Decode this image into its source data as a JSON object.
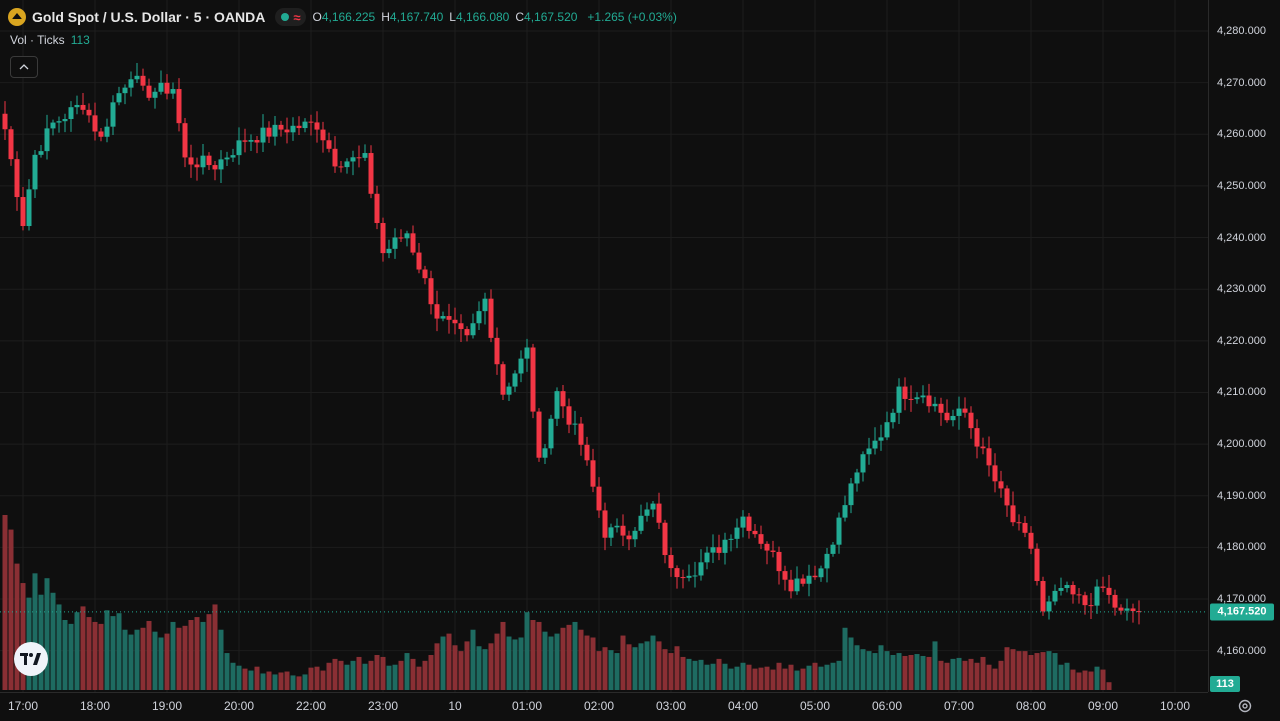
{
  "header": {
    "symbol": "Gold Spot / U.S. Dollar · 5 · OANDA",
    "delay_glyph": "≈",
    "ohlc": {
      "o_label": "O",
      "o_value": "4,166.225",
      "h_label": "H",
      "h_value": "4,167.740",
      "l_label": "L",
      "l_value": "4,166.080",
      "c_label": "C",
      "c_value": "4,167.520"
    },
    "change": "+1.265 (+0.03%)"
  },
  "volume_legend": {
    "label": "Vol · Ticks",
    "value": "113"
  },
  "collapse_icon": "chevron-up-icon",
  "last_price_label": "4,167.520",
  "last_volume_label": "113",
  "colors": {
    "up": "#22ab94",
    "down": "#f23645",
    "vol_up": "#1e6b61",
    "vol_down": "#8a2f34",
    "background": "#0f0f0f",
    "grid": "#1d1d1d"
  },
  "chart_data": {
    "type": "candlestick",
    "ylim": [
      4152,
      4286
    ],
    "y_ticks": [
      4280,
      4270,
      4260,
      4250,
      4240,
      4230,
      4220,
      4210,
      4200,
      4190,
      4180,
      4170,
      4160
    ],
    "y_tick_labels": [
      "4,280.000",
      "4,270.000",
      "4,260.000",
      "4,250.000",
      "4,240.000",
      "4,230.000",
      "4,220.000",
      "4,210.000",
      "4,200.000",
      "4,190.000",
      "4,180.000",
      "4,170.000",
      "4,160.000"
    ],
    "x_ticks": [
      "17:00",
      "18:00",
      "19:00",
      "20:00",
      "22:00",
      "23:00",
      "10",
      "01:00",
      "02:00",
      "03:00",
      "04:00",
      "05:00",
      "06:00",
      "07:00",
      "08:00",
      "09:00",
      "10:00"
    ],
    "tick_index": [
      3,
      15,
      27,
      39,
      51,
      63,
      75,
      87,
      99,
      111,
      123,
      135,
      147,
      159,
      171,
      183,
      195
    ],
    "last_price": 4167.52,
    "volume_max": 180,
    "keyframes": [
      [
        0,
        4261
      ],
      [
        3,
        4243
      ],
      [
        5,
        4256
      ],
      [
        8,
        4262
      ],
      [
        13,
        4266
      ],
      [
        16,
        4259
      ],
      [
        18,
        4266
      ],
      [
        21,
        4272
      ],
      [
        23,
        4268
      ],
      [
        28,
        4269
      ],
      [
        30,
        4255
      ],
      [
        35,
        4254
      ],
      [
        40,
        4259
      ],
      [
        46,
        4261
      ],
      [
        52,
        4262
      ],
      [
        55,
        4255
      ],
      [
        60,
        4255
      ],
      [
        63,
        4237
      ],
      [
        67,
        4241
      ],
      [
        72,
        4225
      ],
      [
        77,
        4220
      ],
      [
        80,
        4228
      ],
      [
        83,
        4210
      ],
      [
        87,
        4218
      ],
      [
        89,
        4196
      ],
      [
        92,
        4210
      ],
      [
        96,
        4200
      ],
      [
        100,
        4183
      ],
      [
        104,
        4183
      ],
      [
        108,
        4188
      ],
      [
        111,
        4175
      ],
      [
        115,
        4176
      ],
      [
        119,
        4180
      ],
      [
        123,
        4186
      ],
      [
        127,
        4180
      ],
      [
        131,
        4173
      ],
      [
        136,
        4176
      ],
      [
        139,
        4185
      ],
      [
        142,
        4195
      ],
      [
        146,
        4202
      ],
      [
        149,
        4210
      ],
      [
        153,
        4210
      ],
      [
        157,
        4205
      ],
      [
        160,
        4206
      ],
      [
        163,
        4198
      ],
      [
        168,
        4185
      ],
      [
        171,
        4180
      ],
      [
        173,
        4167
      ],
      [
        176,
        4172
      ],
      [
        180,
        4169
      ],
      [
        183,
        4172
      ],
      [
        186,
        4167
      ],
      [
        189,
        4168
      ]
    ],
    "volumes": [
      180,
      165,
      130,
      110,
      95,
      120,
      98,
      115,
      100,
      88,
      72,
      68,
      80,
      86,
      75,
      70,
      68,
      82,
      76,
      79,
      62,
      57,
      62,
      64,
      71,
      60,
      54,
      58,
      70,
      64,
      66,
      72,
      75,
      70,
      78,
      88,
      62,
      38,
      28,
      25,
      22,
      20,
      24,
      17,
      19,
      16,
      18,
      19,
      15,
      14,
      16,
      23,
      24,
      20,
      28,
      32,
      30,
      26,
      30,
      34,
      27,
      30,
      36,
      34,
      25,
      26,
      30,
      38,
      32,
      24,
      30,
      36,
      48,
      55,
      58,
      46,
      40,
      50,
      62,
      45,
      42,
      48,
      58,
      70,
      55,
      52,
      54,
      80,
      72,
      70,
      60,
      55,
      58,
      64,
      67,
      70,
      62,
      56,
      54,
      40,
      44,
      41,
      38,
      56,
      47,
      44,
      48,
      50,
      56,
      50,
      42,
      38,
      45,
      34,
      32,
      30,
      31,
      26,
      27,
      32,
      27,
      22,
      24,
      28,
      26,
      22,
      23,
      24,
      21,
      28,
      22,
      26,
      20,
      22,
      25,
      28,
      24,
      26,
      28,
      30,
      64,
      54,
      46,
      42,
      40,
      38,
      46,
      40,
      36,
      38,
      35,
      36,
      37,
      35,
      34,
      50,
      30,
      28,
      32,
      33,
      30,
      32,
      28,
      34,
      26,
      22,
      30,
      44,
      42,
      40,
      40,
      36,
      38,
      39,
      40,
      38,
      26,
      28,
      21,
      18,
      20,
      19,
      24,
      21,
      8,
      0,
      0,
      0,
      0,
      0
    ]
  }
}
